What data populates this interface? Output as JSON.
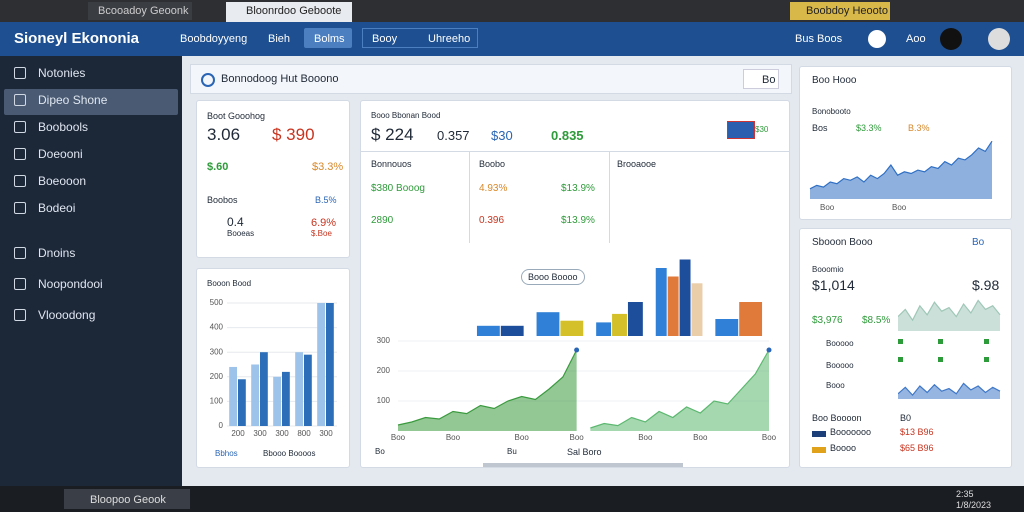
{
  "browser": {
    "tabs": [
      "Bcooadoy Geoonk",
      "Bloonrdoo Geboote",
      "Boobdoy Heooto"
    ]
  },
  "header": {
    "title": "Sioneyl Ekononia",
    "nav": [
      "Boobdoyyeng",
      "Bieh",
      "Bolms",
      "Booy",
      "Uhreeho"
    ],
    "user": "Bus Boos",
    "account": "Aoo"
  },
  "sidebar": {
    "items": [
      "Notonies",
      "Dipeo Shone",
      "Boobools",
      "Doeooni",
      "Boeooon",
      "Bodeoi",
      "Dnoins",
      "Noopondooi",
      "Vlooodong"
    ]
  },
  "main": {
    "title": "Bonnodoog Hut Booono",
    "button": "Bo"
  },
  "summary": {
    "title": "Boot Gooohog",
    "value": "3.06",
    "alt": "$ 390",
    "change": "$.60",
    "change_pct": "$3.3%",
    "label": "Boobos",
    "label_pct": "B.5%",
    "sub_value": "0.4",
    "sub_label": "Booeas",
    "sub_pct": "6.9%",
    "sub_note": "$.Boe"
  },
  "left_chart": {
    "type": "bar",
    "title": "Booon Bood",
    "categories": [
      "200",
      "300",
      "300",
      "800",
      "300"
    ],
    "series": [
      {
        "color": "#9dc3ea",
        "values": [
          240,
          250,
          200,
          300,
          500
        ]
      },
      {
        "color": "#2c6fb8",
        "values": [
          190,
          300,
          220,
          290,
          500
        ]
      }
    ],
    "ylim": [
      0,
      500
    ],
    "yticks": [
      0,
      100,
      200,
      300,
      400,
      500
    ],
    "grid": true,
    "footer": [
      "Bbhos",
      "Bbooo Boooos"
    ]
  },
  "overview": {
    "title": "Booo Bbonan Bood",
    "value": "$ 224",
    "stats": [
      "0.357",
      "$30",
      "0.835"
    ],
    "badge": "$30",
    "table": {
      "headers": [
        "Bonnouos",
        "Boobo",
        "Brooaooe"
      ],
      "rows": [
        [
          "$380 Booog",
          "4.93%",
          "$13.9%"
        ],
        [
          "2890",
          "0.396",
          "$13.9%"
        ]
      ]
    },
    "bars": {
      "type": "bar",
      "categories": [
        null,
        null,
        null,
        null,
        null
      ],
      "ylim": [
        0,
        100
      ],
      "series": [
        {
          "color": "#2f80d6",
          "values": [
            12,
            28,
            16,
            80,
            20
          ]
        },
        {
          "color": "#d4c12a",
          "values": [
            null,
            18,
            26,
            null,
            null
          ]
        },
        {
          "color": "#e07a3a",
          "values": [
            null,
            null,
            null,
            70,
            40
          ]
        },
        {
          "color": "#1c4e9c",
          "values": [
            12,
            null,
            40,
            90,
            null
          ]
        },
        {
          "color": "#eacda9",
          "values": [
            null,
            null,
            null,
            62,
            null
          ]
        }
      ]
    },
    "tooltip": "Booo Boooo",
    "area": {
      "type": "area",
      "ylim": [
        0,
        300
      ],
      "yticks": [
        100,
        200,
        300
      ],
      "xlim": [
        0,
        27
      ],
      "xticks": [
        {
          "value": 0,
          "label": "Boo"
        },
        {
          "value": 4,
          "label": "Boo"
        },
        {
          "value": 9,
          "label": "Boo"
        },
        {
          "value": 13,
          "label": "Boo"
        },
        {
          "value": 18,
          "label": "Boo"
        },
        {
          "value": 22,
          "label": "Boo"
        },
        {
          "value": 27,
          "label": "Boo"
        }
      ],
      "series": [
        {
          "color": "#3a9a3e",
          "values": [
            20,
            30,
            45,
            40,
            65,
            58,
            85,
            75,
            100,
            115,
            105,
            140,
            180,
            270,
            null,
            null,
            null,
            null,
            null,
            null,
            null,
            null,
            null,
            null,
            null,
            null,
            null,
            null
          ]
        },
        {
          "color": "#5cb870",
          "values": [
            null,
            null,
            null,
            null,
            null,
            null,
            null,
            null,
            null,
            null,
            null,
            null,
            null,
            null,
            10,
            25,
            18,
            45,
            30,
            65,
            45,
            80,
            60,
            100,
            90,
            140,
            190,
            270
          ]
        }
      ]
    },
    "footer": [
      "Bo",
      "Bu",
      "Sal Boro"
    ]
  },
  "side_top": {
    "title": "Boo Hooo",
    "subtitle": "Bonobooto",
    "stats": [
      "Bos",
      "$3.3%",
      "B.3%"
    ],
    "area": {
      "type": "area",
      "color": "#2f6fc4",
      "ylim": [
        0,
        200
      ],
      "values": [
        30,
        40,
        35,
        50,
        45,
        60,
        55,
        65,
        50,
        70,
        60,
        75,
        100,
        70,
        80,
        75,
        85,
        80,
        95,
        90,
        110,
        100,
        120,
        115,
        130,
        150,
        140,
        170
      ],
      "xticks": [
        "Boo",
        "Boo"
      ]
    }
  },
  "side_bottom": {
    "title": "Sbooon Booo",
    "button": "Bo",
    "label": "Booomio",
    "value": "$1,014",
    "alt": "$.98",
    "sub_value": "$3,976",
    "sub_pct": "$8.5%",
    "rows": [
      "Booooo",
      "Booooo",
      "Booo"
    ],
    "spark": {
      "type": "area",
      "color": "#9fc7b8",
      "ylim": [
        0,
        100
      ],
      "values": [
        40,
        60,
        30,
        70,
        45,
        80,
        55,
        65,
        40,
        75,
        50,
        85,
        60,
        70,
        45
      ]
    },
    "spark2": {
      "type": "area",
      "color": "#3f78c8",
      "ylim": [
        0,
        100
      ],
      "values": [
        20,
        45,
        15,
        50,
        25,
        55,
        30,
        40,
        20,
        60,
        35,
        50,
        25,
        45,
        30
      ]
    },
    "list_title": "Boo Boooon",
    "list_value": "B0",
    "legend": [
      {
        "name": "Booooooo",
        "value": "$13 B96",
        "color": "#1c3f7a"
      },
      {
        "name": "Boooo",
        "value": "$65 B96",
        "color": "#e0a21a"
      }
    ]
  },
  "taskbar": {
    "app": "Bloopoo Geook",
    "time": "2:35",
    "date": "1/8/2023"
  }
}
